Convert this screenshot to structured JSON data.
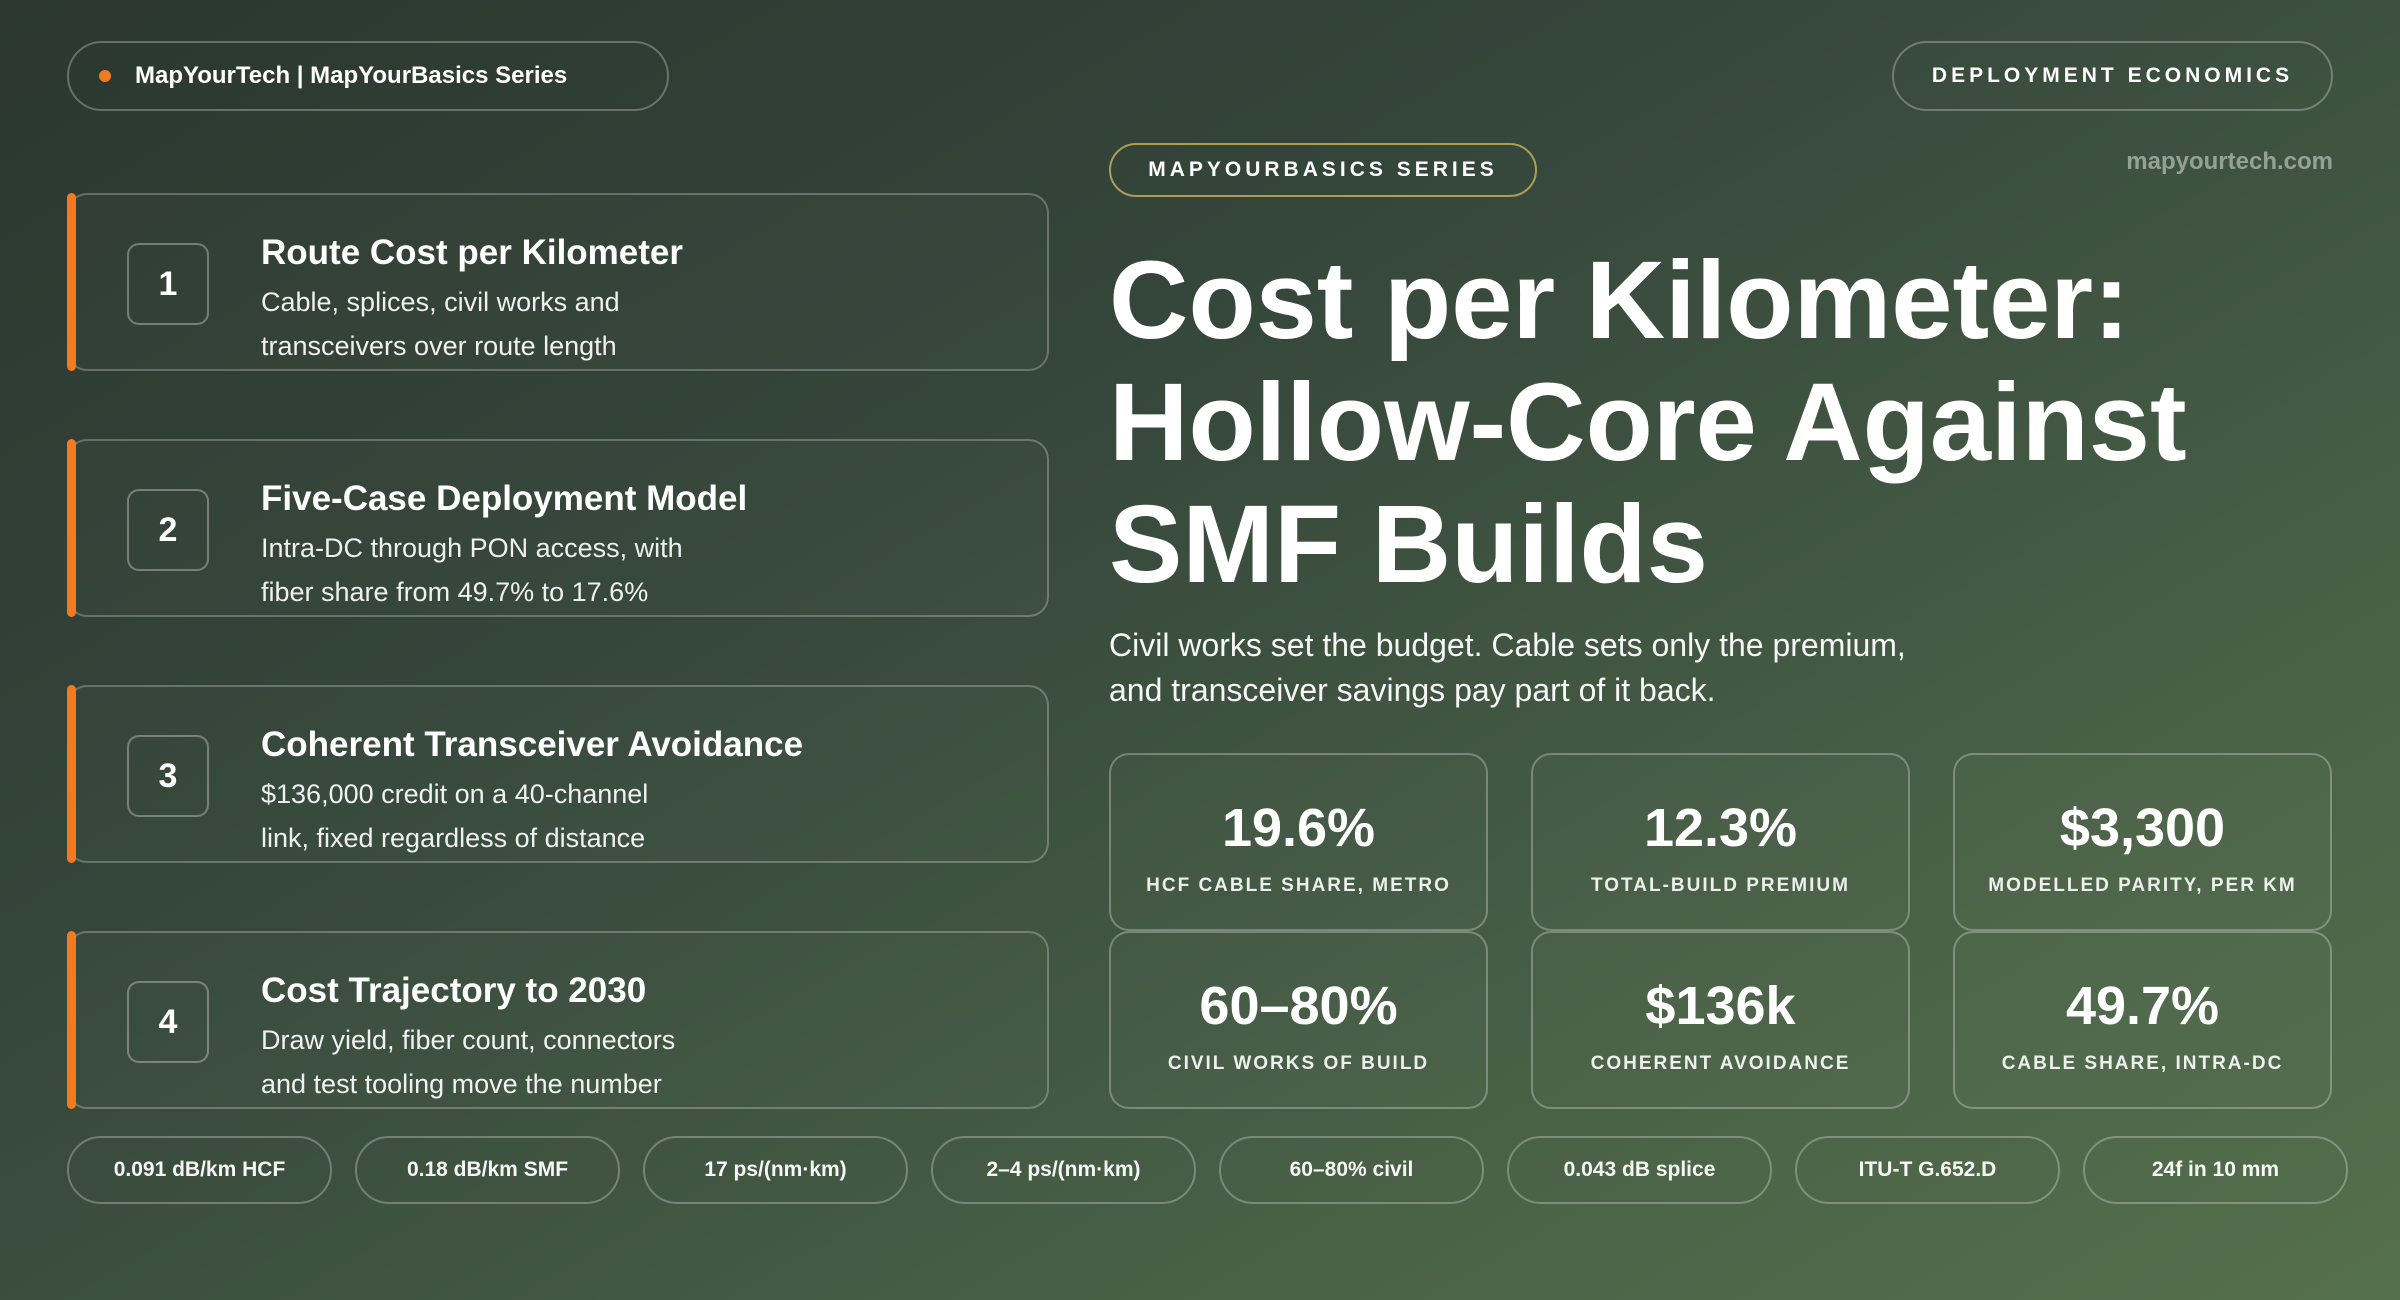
{
  "header": {
    "brand": "MapYourTech | MapYourBasics Series",
    "topic": "DEPLOYMENT ECONOMICS",
    "series": "MAPYOURBASICS SERIES",
    "site": "mapyourtech.com",
    "accent_color": "#f47a1f"
  },
  "cards": [
    {
      "number": "1",
      "title": "Route Cost per Kilometer",
      "line1": "Cable, splices, civil works and",
      "line2": "transceivers over route length"
    },
    {
      "number": "2",
      "title": "Five-Case Deployment Model",
      "line1": "Intra-DC through PON access, with",
      "line2": "fiber share from 49.7% to 17.6%"
    },
    {
      "number": "3",
      "title": "Coherent Transceiver Avoidance",
      "line1": "$136,000 credit on a 40-channel",
      "line2": "link, fixed regardless of distance"
    },
    {
      "number": "4",
      "title": "Cost Trajectory to 2030",
      "line1": "Draw yield, fiber count, connectors",
      "line2": "and test tooling move the number"
    }
  ],
  "main": {
    "title_line1": "Cost per Kilometer:",
    "title_line2": "Hollow-Core Against",
    "title_line3": "SMF Builds",
    "subtitle_line1": "Civil works set the budget. Cable sets only the premium,",
    "subtitle_line2": "and transceiver savings pay part of it back."
  },
  "stats": [
    {
      "value": "19.6%",
      "label": "HCF CABLE SHARE, METRO"
    },
    {
      "value": "12.3%",
      "label": "TOTAL-BUILD PREMIUM"
    },
    {
      "value": "$3,300",
      "label": "MODELLED PARITY, PER KM"
    },
    {
      "value": "60–80%",
      "label": "CIVIL WORKS OF BUILD"
    },
    {
      "value": "$136k",
      "label": "COHERENT AVOIDANCE"
    },
    {
      "value": "49.7%",
      "label": "CABLE SHARE, INTRA-DC"
    }
  ],
  "chips": [
    "0.091 dB/km HCF",
    "0.18 dB/km SMF",
    "17 ps/(nm·km)",
    "2–4 ps/(nm·km)",
    "60–80% civil",
    "0.043 dB splice",
    "ITU-T G.652.D",
    "24f in 10 mm"
  ]
}
